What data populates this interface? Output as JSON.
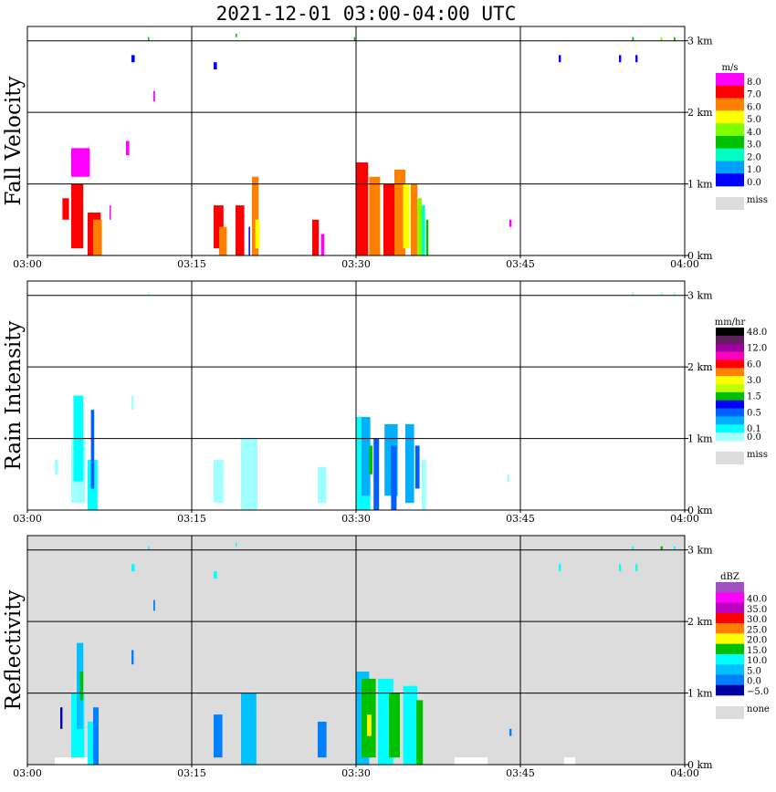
{
  "chart_data": {
    "type": "heatmap",
    "title": "2021-12-01   03:00-04:00 UTC",
    "x_ticks": [
      "03:00",
      "03:15",
      "03:30",
      "03:45",
      "04:00"
    ],
    "y_ticks": [
      "0 km",
      "1 km",
      "2 km",
      "3 km"
    ],
    "xlim_minutes": [
      0,
      60
    ],
    "ylim_km": [
      0,
      3.2
    ],
    "grid": true,
    "panels": [
      {
        "id": "fall-velocity",
        "ylabel": "Fall Velocity",
        "unit": "m/s",
        "background": "#ffffff",
        "colorbar": [
          {
            "label": "8.0",
            "color": "#ff00ff"
          },
          {
            "label": "7.0",
            "color": "#ff0000"
          },
          {
            "label": "6.0",
            "color": "#ff8000"
          },
          {
            "label": "5.0",
            "color": "#ffff00"
          },
          {
            "label": "4.0",
            "color": "#80ff00"
          },
          {
            "label": "3.0",
            "color": "#00c000"
          },
          {
            "label": "2.0",
            "color": "#00ffc0"
          },
          {
            "label": "1.0",
            "color": "#00a0ff"
          },
          {
            "label": "0.0",
            "color": "#0000ff"
          }
        ],
        "miss_label": "miss",
        "cells": [
          [
            4.0,
            0.1,
            1.1,
            0.9,
            1
          ],
          [
            4.0,
            1.1,
            1.7,
            0.4,
            0
          ],
          [
            5.5,
            0.0,
            1.2,
            0.6,
            1
          ],
          [
            6.0,
            0.0,
            0.8,
            0.5,
            2
          ],
          [
            3.2,
            0.5,
            0.6,
            0.3,
            1
          ],
          [
            7.5,
            0.5,
            0.1,
            0.2,
            0
          ],
          [
            9.0,
            1.4,
            0.3,
            0.2,
            0
          ],
          [
            11.0,
            3.0,
            0.1,
            0.05,
            5
          ],
          [
            19.0,
            3.05,
            0.1,
            0.05,
            5
          ],
          [
            9.5,
            2.7,
            0.3,
            0.1,
            8
          ],
          [
            17.0,
            2.6,
            0.3,
            0.1,
            8
          ],
          [
            11.5,
            2.15,
            0.15,
            0.15,
            0
          ],
          [
            17.0,
            0.1,
            0.9,
            0.6,
            1
          ],
          [
            17.5,
            0.0,
            0.7,
            0.4,
            2
          ],
          [
            19.0,
            0.0,
            0.8,
            0.7,
            1
          ],
          [
            20.5,
            0.0,
            0.6,
            1.1,
            2
          ],
          [
            20.8,
            0.1,
            0.4,
            0.4,
            3
          ],
          [
            20.2,
            0.0,
            0.1,
            0.4,
            8
          ],
          [
            26.0,
            0.0,
            0.6,
            0.5,
            1
          ],
          [
            26.8,
            0.0,
            0.3,
            0.3,
            0
          ],
          [
            29.8,
            3.0,
            0.1,
            0.05,
            5
          ],
          [
            30.0,
            0.0,
            1.1,
            1.3,
            1
          ],
          [
            31.2,
            0.0,
            1.0,
            1.1,
            2
          ],
          [
            32.5,
            0.0,
            1.3,
            1.0,
            1
          ],
          [
            33.5,
            0.0,
            1.0,
            1.2,
            2
          ],
          [
            34.3,
            0.1,
            0.6,
            0.9,
            3
          ],
          [
            35.0,
            0.0,
            0.6,
            1.0,
            2
          ],
          [
            35.6,
            0.0,
            0.4,
            0.8,
            4
          ],
          [
            36.0,
            0.0,
            0.3,
            0.7,
            6
          ],
          [
            36.4,
            0.0,
            0.2,
            0.5,
            5
          ],
          [
            44.0,
            0.4,
            0.2,
            0.1,
            0
          ],
          [
            48.5,
            2.7,
            0.2,
            0.1,
            8
          ],
          [
            54.0,
            2.7,
            0.2,
            0.1,
            8
          ],
          [
            55.5,
            2.7,
            0.2,
            0.1,
            8
          ],
          [
            55.2,
            3.0,
            0.15,
            0.05,
            5
          ],
          [
            57.8,
            3.0,
            0.15,
            0.05,
            4
          ],
          [
            59.0,
            3.0,
            0.15,
            0.05,
            5
          ]
        ]
      },
      {
        "id": "rain-intensity",
        "ylabel": "Rain Intensity",
        "unit": "mm/hr",
        "background": "#ffffff",
        "colorbar": [
          {
            "label": "48.0",
            "color": "#000000"
          },
          {
            "label": "",
            "color": "#602060"
          },
          {
            "label": "12.0",
            "color": "#a000a0"
          },
          {
            "label": "",
            "color": "#ff00c0"
          },
          {
            "label": "6.0",
            "color": "#ff0000"
          },
          {
            "label": "",
            "color": "#ff8000"
          },
          {
            "label": "3.0",
            "color": "#ffff00"
          },
          {
            "label": "",
            "color": "#c0ff00"
          },
          {
            "label": "1.5",
            "color": "#00c000"
          },
          {
            "label": "",
            "color": "#0000ff"
          },
          {
            "label": "0.5",
            "color": "#0060ff"
          },
          {
            "label": "",
            "color": "#00b0ff"
          },
          {
            "label": "0.1",
            "color": "#00ffff"
          },
          {
            "label": "0.0",
            "color": "#a0ffff"
          }
        ],
        "miss_label": "miss",
        "cells": [
          [
            4.0,
            0.1,
            1.3,
            0.9,
            13
          ],
          [
            4.2,
            0.4,
            0.9,
            1.2,
            12
          ],
          [
            5.5,
            0.0,
            0.9,
            0.7,
            12
          ],
          [
            5.8,
            0.3,
            0.3,
            1.1,
            10
          ],
          [
            2.5,
            0.5,
            0.3,
            0.2,
            13
          ],
          [
            9.5,
            1.4,
            0.2,
            0.2,
            13
          ],
          [
            17.0,
            0.1,
            0.9,
            0.6,
            13
          ],
          [
            19.5,
            0.0,
            1.5,
            1.0,
            13
          ],
          [
            26.5,
            0.1,
            0.8,
            0.5,
            13
          ],
          [
            30.0,
            0.0,
            1.3,
            1.3,
            12
          ],
          [
            30.5,
            0.2,
            0.8,
            1.1,
            11
          ],
          [
            31.6,
            0.0,
            0.5,
            1.0,
            10
          ],
          [
            32.6,
            0.2,
            1.2,
            1.0,
            11
          ],
          [
            33.2,
            0.0,
            0.5,
            0.9,
            10
          ],
          [
            34.5,
            0.1,
            0.8,
            1.1,
            11
          ],
          [
            35.4,
            0.3,
            0.4,
            0.6,
            10
          ],
          [
            36.0,
            0.0,
            0.4,
            0.7,
            13
          ],
          [
            31.2,
            0.5,
            0.3,
            0.4,
            8
          ],
          [
            43.8,
            0.4,
            0.2,
            0.1,
            13
          ],
          [
            11.0,
            3.0,
            0.1,
            0.05,
            13
          ],
          [
            57.8,
            3.0,
            0.2,
            0.05,
            13
          ],
          [
            55.2,
            3.0,
            0.15,
            0.05,
            13
          ],
          [
            59.0,
            3.0,
            0.15,
            0.05,
            13
          ]
        ]
      },
      {
        "id": "reflectivity",
        "ylabel": "Reflectivity",
        "unit": "dBZ",
        "background": "#dcdcdc",
        "colorbar": [
          {
            "label": "",
            "color": "#a050c0"
          },
          {
            "label": "40.0",
            "color": "#ff00ff"
          },
          {
            "label": "35.0",
            "color": "#c000c0"
          },
          {
            "label": "30.0",
            "color": "#ff0000"
          },
          {
            "label": "25.0",
            "color": "#ff8000"
          },
          {
            "label": "20.0",
            "color": "#ffff00"
          },
          {
            "label": "15.0",
            "color": "#00c000"
          },
          {
            "label": "10.0",
            "color": "#00ffff"
          },
          {
            "label": "5.0",
            "color": "#00c0ff"
          },
          {
            "label": "0.0",
            "color": "#0080ff"
          },
          {
            "label": "−5.0",
            "color": "#0000a0"
          }
        ],
        "miss_label": "none",
        "cells": [
          [
            4.0,
            0.1,
            1.2,
            0.9,
            7
          ],
          [
            4.5,
            0.5,
            0.6,
            1.2,
            8
          ],
          [
            5.5,
            0.0,
            1.0,
            0.6,
            7
          ],
          [
            4.8,
            0.9,
            0.3,
            0.4,
            6
          ],
          [
            6.0,
            0.0,
            0.5,
            0.8,
            9
          ],
          [
            3.0,
            0.5,
            0.2,
            0.3,
            10
          ],
          [
            9.5,
            1.4,
            0.2,
            0.2,
            9
          ],
          [
            17.0,
            0.1,
            0.8,
            0.6,
            9
          ],
          [
            19.5,
            0.0,
            1.4,
            1.0,
            8
          ],
          [
            26.5,
            0.1,
            0.8,
            0.5,
            9
          ],
          [
            30.0,
            0.0,
            1.2,
            1.3,
            8
          ],
          [
            30.5,
            0.1,
            1.3,
            1.1,
            6
          ],
          [
            32.0,
            0.0,
            1.4,
            1.2,
            7
          ],
          [
            33.0,
            0.1,
            1.0,
            0.9,
            6
          ],
          [
            34.3,
            0.0,
            1.3,
            1.1,
            7
          ],
          [
            35.5,
            0.0,
            0.6,
            0.9,
            6
          ],
          [
            31.0,
            0.4,
            0.4,
            0.3,
            5
          ],
          [
            44.0,
            0.4,
            0.2,
            0.1,
            9
          ],
          [
            11.0,
            3.0,
            0.1,
            0.05,
            7
          ],
          [
            19.0,
            3.05,
            0.1,
            0.05,
            7
          ],
          [
            9.5,
            2.7,
            0.3,
            0.1,
            7
          ],
          [
            17.0,
            2.6,
            0.3,
            0.1,
            7
          ],
          [
            11.5,
            2.15,
            0.15,
            0.15,
            9
          ],
          [
            48.5,
            2.7,
            0.2,
            0.1,
            7
          ],
          [
            54.0,
            2.7,
            0.2,
            0.1,
            7
          ],
          [
            55.5,
            2.7,
            0.2,
            0.1,
            7
          ],
          [
            57.8,
            3.0,
            0.2,
            0.05,
            6
          ],
          [
            55.2,
            3.0,
            0.15,
            0.05,
            7
          ],
          [
            59.0,
            3.0,
            0.15,
            0.05,
            7
          ],
          [
            2.5,
            0.0,
            3.0,
            0.1,
            -1
          ],
          [
            39.0,
            0.0,
            3.0,
            0.1,
            -1
          ],
          [
            49.0,
            0.0,
            1.0,
            0.1,
            -1
          ]
        ]
      }
    ]
  }
}
